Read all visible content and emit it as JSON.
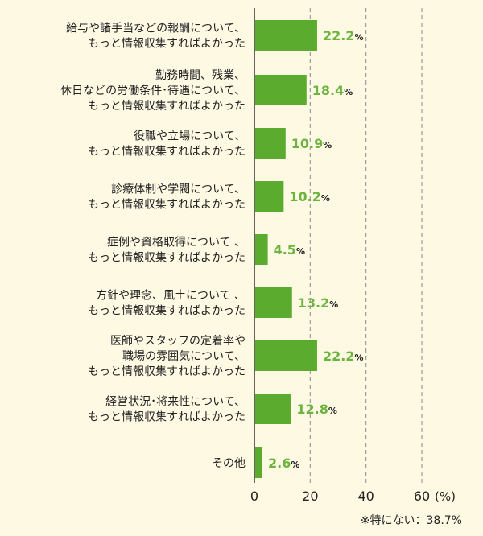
{
  "chart_data": {
    "type": "bar",
    "orientation": "horizontal",
    "categories": [
      [
        "給与や諸手当などの報酬について、",
        "もっと情報収集すればよかった"
      ],
      [
        "勤務時間、残業、",
        "休日などの労働条件･待遇について、",
        "もっと情報収集すればよかった"
      ],
      [
        "役職や立場について、",
        "もっと情報収集すればよかった"
      ],
      [
        "診療体制や学閥について、",
        "もっと情報収集すればよかった"
      ],
      [
        "症例や資格取得について 、",
        "もっと情報収集すればよかった"
      ],
      [
        "方針や理念、風土について 、",
        "もっと情報収集すればよかった"
      ],
      [
        "医師やスタッフの定着率や",
        "職場の雰囲気について、",
        "もっと情報収集すればよかった"
      ],
      [
        "経営状況･将来性について、",
        "もっと情報収集すればよかった"
      ],
      [
        "その他"
      ]
    ],
    "values": [
      22.2,
      18.4,
      10.9,
      10.2,
      4.5,
      13.2,
      22.2,
      12.8,
      2.6
    ],
    "value_labels": [
      "22.2",
      "18.4",
      "10.9",
      "10.2",
      "4.5",
      "13.2",
      "22.2",
      "12.8",
      "2.6"
    ],
    "value_suffix": "%",
    "xlim": [
      0,
      60
    ],
    "xticks": [
      0,
      20,
      40,
      60
    ],
    "x_unit": "(%)",
    "grid": "vertical dashed",
    "colors": {
      "bar": "#5aab2e",
      "value_text": "#6cb43f",
      "grid": "#9a9a9a",
      "axis": "#333333",
      "background": "#fdf9e3"
    },
    "footnote": "※特にない：38.7%"
  }
}
